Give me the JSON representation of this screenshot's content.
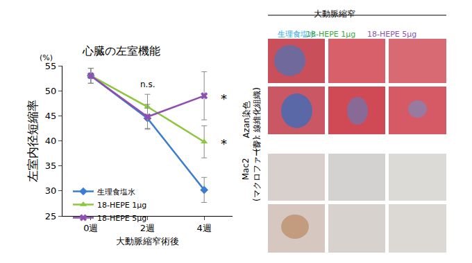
{
  "chart_data": {
    "type": "line",
    "title": "心臓の左室機能",
    "y_label": "左室内径短縮率",
    "y_unit": "(%)",
    "x_label": "大動脈縮窄術後",
    "categories": [
      "0週",
      "2週",
      "4週"
    ],
    "ylim": [
      25,
      55
    ],
    "yticks": [
      25,
      30,
      35,
      40,
      45,
      50,
      55
    ],
    "grid": false,
    "legend": "lower left",
    "series": [
      {
        "name": "生理食塩水",
        "color": "#3b7dd0",
        "marker": "diamond",
        "values": [
          53,
          44.5,
          30.2
        ],
        "error": [
          1.5,
          2,
          2.5
        ]
      },
      {
        "name": "18-HEPE 1μg",
        "color": "#8dc63f",
        "marker": "triangle-up",
        "values": [
          53,
          46.8,
          39.8
        ],
        "error": [
          1.5,
          2.5,
          3.2
        ]
      },
      {
        "name": "18-HEPE 5μg",
        "color": "#8e4fb0",
        "marker": "x",
        "values": [
          53,
          44.8,
          49
        ],
        "error": [
          1.5,
          2.5,
          4.8
        ]
      }
    ],
    "annotations": [
      {
        "category": "2週",
        "y": 51.3,
        "text": "n.s."
      },
      {
        "category": "4週",
        "y": 48.5,
        "text": "*"
      },
      {
        "category": "4週",
        "y": 39.5,
        "text": "*"
      }
    ]
  },
  "figure_panels": {
    "group_title": "大動脈縮窄",
    "columns": [
      {
        "label": "生理食塩水",
        "color": "#29abe2"
      },
      {
        "label": "18-HEPE 1μg",
        "color": "#39a935"
      },
      {
        "label": "18-HEPE 5μg",
        "color": "#8e4fb0"
      }
    ],
    "rows": [
      {
        "label_lines": [
          "Azan染色",
          "(青：線維化組織)"
        ]
      },
      {
        "label_lines": [
          "Mac2",
          "(マクロファージ)"
        ]
      }
    ]
  }
}
